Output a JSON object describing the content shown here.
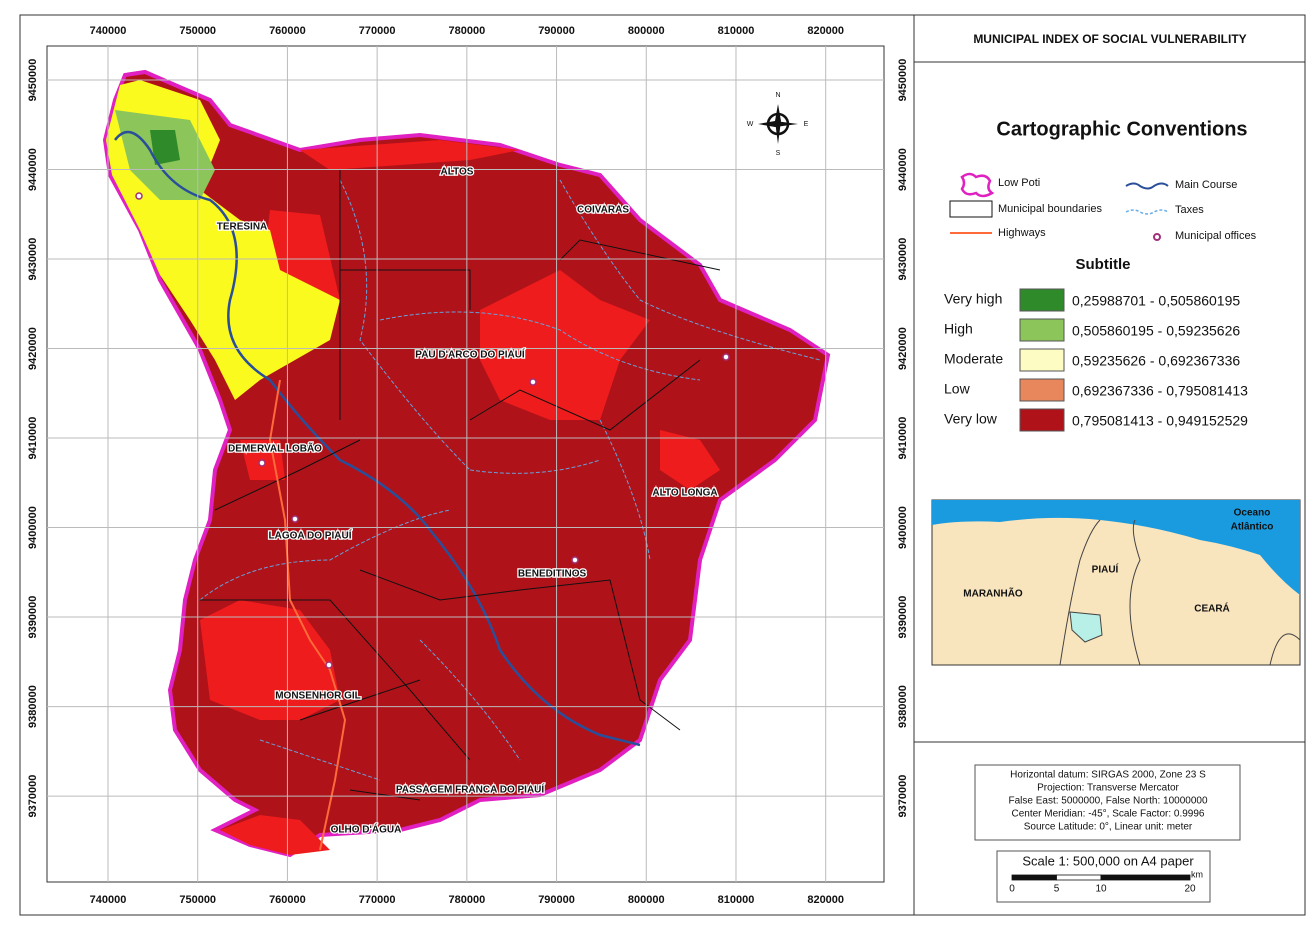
{
  "title": "MUNICIPAL INDEX OF SOCIAL VULNERABILITY",
  "map": {
    "xlim": [
      733200,
      826500
    ],
    "ylim": [
      9360400,
      9453800
    ],
    "xticks": [
      740000,
      750000,
      760000,
      770000,
      780000,
      790000,
      800000,
      810000,
      820000
    ],
    "yticks": [
      9370000,
      9380000,
      9390000,
      9400000,
      9410000,
      9420000,
      9430000,
      9440000,
      9450000
    ],
    "places": [
      "ALTOS",
      "COIVARAS",
      "TERESINA",
      "PAU D'ARCO DO PIAUÍ",
      "DEMERVAL LOBÃO",
      "ALTO LONGA",
      "LAGOA DO PIAUÍ",
      "BENEDITINOS",
      "MONSENHOR GIL",
      "PASSAGEM FRANCA DO PIAUÍ",
      "OLHO D'ÁGUA"
    ],
    "compass": {
      "n": "N",
      "s": "S",
      "w": "W",
      "e": "E"
    }
  },
  "legend": {
    "heading": "Cartographic Conventions",
    "items": [
      "Low Poti",
      "Municipal boundaries",
      "Highways",
      "Main Course",
      "Taxes",
      "Municipal offices"
    ],
    "subtitle": "Subtitle",
    "classes": [
      {
        "name": "Very high",
        "range": "0,25988701 - 0,505860195",
        "color": "#2f8a2a"
      },
      {
        "name": "High",
        "range": "0,505860195 - 0,59235626",
        "color": "#8cc55a"
      },
      {
        "name": "Moderate",
        "range": "0,59235626 - 0,692367336",
        "color": "#fdfcc2"
      },
      {
        "name": "Low",
        "range": "0,692367336 - 0,795081413",
        "color": "#e8865c"
      },
      {
        "name": "Very low",
        "range": "0,795081413 - 0,949152529",
        "color": "#b0121a"
      }
    ]
  },
  "inset": {
    "ocean": [
      "Oceano",
      "Atlântico"
    ],
    "states": [
      "PIAUÍ",
      "MARANHÃO",
      "CEARÁ"
    ]
  },
  "notes": [
    "Horizontal datum: SIRGAS 2000, Zone 23 S",
    "Projection: Transverse Mercator",
    "False East: 5000000, False North: 10000000",
    "Center Meridian: -45°, Scale Factor: 0.9996",
    "Source Latitude: 0°, Linear unit: meter"
  ],
  "scale": {
    "title": "Scale 1: 500,000 on A4 paper",
    "ticks": [
      0,
      5,
      10,
      20
    ],
    "unit": "km"
  }
}
